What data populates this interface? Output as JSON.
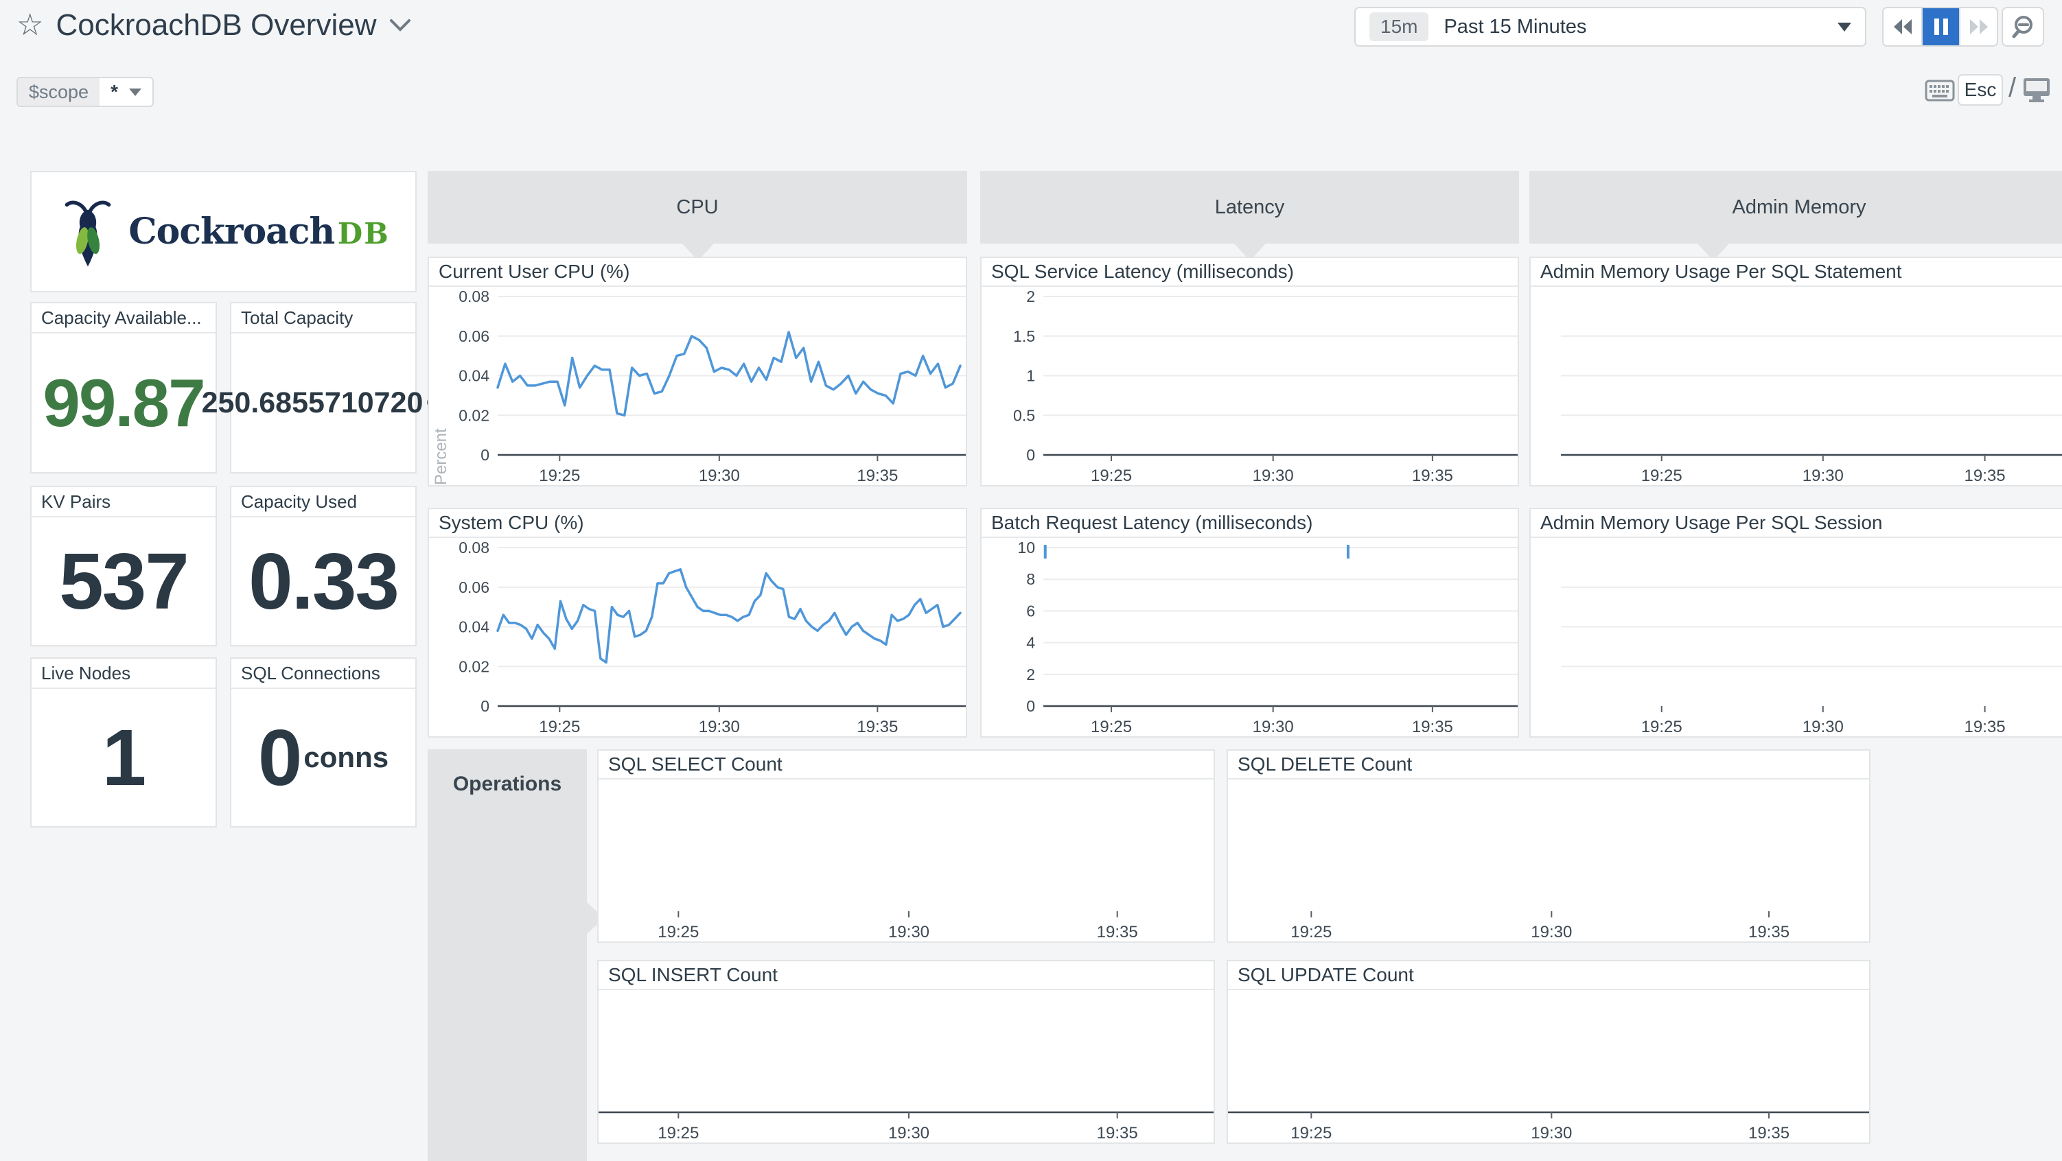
{
  "header": {
    "title": "CockroachDB Overview",
    "time": {
      "badge": "15m",
      "label": "Past 15 Minutes"
    },
    "esc_label": "Esc",
    "slash": "/"
  },
  "scope": {
    "label": "$scope",
    "value": "*"
  },
  "logo": {
    "brand": "Cockroach",
    "suffix": "DB"
  },
  "colors": {
    "accent_blue": "#2d72c8",
    "line_blue": "#4f97d9",
    "stat_green": "#3e7b44",
    "brand_navy": "#1c3150",
    "brand_green": "#4d9e2d",
    "group_gray": "#e2e3e4"
  },
  "groups": {
    "cpu": "CPU",
    "latency": "Latency",
    "admin_memory": "Admin Memory",
    "operations": "Operations"
  },
  "stats": [
    {
      "title": "Capacity Available...",
      "value": "99.87",
      "unit": ""
    },
    {
      "title": "Total Capacity",
      "value": "250.6855710720",
      "unit": "GB"
    },
    {
      "title": "KV Pairs",
      "value": "537",
      "unit": ""
    },
    {
      "title": "Capacity Used",
      "value": "0.33",
      "unit": ""
    },
    {
      "title": "Live Nodes",
      "value": "1",
      "unit": ""
    },
    {
      "title": "SQL Connections",
      "value": "0",
      "unit": "conns"
    }
  ],
  "charts": {
    "current_user_cpu": {
      "type": "line",
      "title": "Current User CPU (%)",
      "ylabel": "Percent",
      "vmax": 0.08,
      "gutter_left": 100,
      "axis": true,
      "line_color": "#4f97d9",
      "yticks": [
        {
          "v": 0,
          "label": "0"
        },
        {
          "v": 0.02,
          "label": "0.02"
        },
        {
          "v": 0.04,
          "label": "0.04"
        },
        {
          "v": 0.06,
          "label": "0.06"
        },
        {
          "v": 0.08,
          "label": "0.08"
        }
      ],
      "xticks": [
        {
          "pos": 0.134,
          "label": "19:25"
        },
        {
          "pos": 0.479,
          "label": "19:30"
        },
        {
          "pos": 0.821,
          "label": "19:35"
        }
      ],
      "values": [
        0.034,
        0.046,
        0.037,
        0.04,
        0.035,
        0.035,
        0.036,
        0.037,
        0.037,
        0.025,
        0.049,
        0.034,
        0.04,
        0.045,
        0.043,
        0.043,
        0.021,
        0.02,
        0.044,
        0.04,
        0.041,
        0.031,
        0.032,
        0.04,
        0.05,
        0.051,
        0.06,
        0.058,
        0.054,
        0.042,
        0.044,
        0.043,
        0.04,
        0.046,
        0.037,
        0.044,
        0.038,
        0.049,
        0.047,
        0.062,
        0.049,
        0.054,
        0.037,
        0.047,
        0.035,
        0.033,
        0.036,
        0.04,
        0.031,
        0.037,
        0.033,
        0.031,
        0.03,
        0.026,
        0.041,
        0.042,
        0.04,
        0.05,
        0.041,
        0.046,
        0.034,
        0.036,
        0.045
      ]
    },
    "system_cpu": {
      "type": "line",
      "title": "System CPU (%)",
      "vmax": 0.08,
      "gutter_left": 100,
      "axis": true,
      "line_color": "#4f97d9",
      "yticks": [
        {
          "v": 0,
          "label": "0"
        },
        {
          "v": 0.02,
          "label": "0.02"
        },
        {
          "v": 0.04,
          "label": "0.04"
        },
        {
          "v": 0.06,
          "label": "0.06"
        },
        {
          "v": 0.08,
          "label": "0.08"
        }
      ],
      "xticks": [
        {
          "pos": 0.134,
          "label": "19:25"
        },
        {
          "pos": 0.479,
          "label": "19:30"
        },
        {
          "pos": 0.821,
          "label": "19:35"
        }
      ],
      "values": [
        0.038,
        0.046,
        0.042,
        0.042,
        0.041,
        0.039,
        0.034,
        0.041,
        0.037,
        0.034,
        0.029,
        0.053,
        0.044,
        0.039,
        0.043,
        0.051,
        0.049,
        0.048,
        0.024,
        0.022,
        0.05,
        0.046,
        0.045,
        0.048,
        0.035,
        0.036,
        0.038,
        0.045,
        0.062,
        0.062,
        0.067,
        0.068,
        0.069,
        0.06,
        0.055,
        0.05,
        0.048,
        0.048,
        0.047,
        0.046,
        0.046,
        0.045,
        0.043,
        0.045,
        0.046,
        0.053,
        0.056,
        0.067,
        0.063,
        0.06,
        0.059,
        0.045,
        0.044,
        0.049,
        0.043,
        0.04,
        0.038,
        0.041,
        0.043,
        0.047,
        0.041,
        0.036,
        0.04,
        0.042,
        0.038,
        0.036,
        0.034,
        0.033,
        0.031,
        0.046,
        0.043,
        0.044,
        0.046,
        0.051,
        0.054,
        0.047,
        0.049,
        0.051,
        0.04,
        0.041,
        0.044,
        0.047
      ]
    },
    "sql_service_latency": {
      "type": "line",
      "title": "SQL Service Latency (milliseconds)",
      "vmax": 2,
      "gutter_left": 90,
      "axis": true,
      "line_color": "#4f97d9",
      "yticks": [
        {
          "v": 0,
          "label": "0"
        },
        {
          "v": 0.5,
          "label": "0.5"
        },
        {
          "v": 1,
          "label": "1"
        },
        {
          "v": 1.5,
          "label": "1.5"
        },
        {
          "v": 2,
          "label": "2"
        }
      ],
      "xticks": [
        {
          "pos": 0.145,
          "label": "19:25"
        },
        {
          "pos": 0.49,
          "label": "19:30"
        },
        {
          "pos": 0.83,
          "label": "19:35"
        }
      ],
      "values": []
    },
    "batch_request_latency": {
      "type": "line",
      "title": "Batch Request Latency (milliseconds)",
      "vmax": 10,
      "gutter_left": 90,
      "axis": true,
      "line_color": "#4f97d9",
      "yticks": [
        {
          "v": 0,
          "label": "0"
        },
        {
          "v": 2,
          "label": "2"
        },
        {
          "v": 4,
          "label": "4"
        },
        {
          "v": 6,
          "label": "6"
        },
        {
          "v": 8,
          "label": "8"
        },
        {
          "v": 10,
          "label": "10"
        }
      ],
      "xticks": [
        {
          "pos": 0.145,
          "label": "19:25"
        },
        {
          "pos": 0.49,
          "label": "19:30"
        },
        {
          "pos": 0.83,
          "label": "19:35"
        }
      ],
      "markers": [
        0.004,
        0.65
      ],
      "values": []
    },
    "admin_mem_statement": {
      "type": "line",
      "title": "Admin Memory Usage Per SQL Statement",
      "vmax": 4,
      "gutter_left": 44,
      "axis": true,
      "line_color": "#4f97d9",
      "yticks": [
        {
          "v": 1,
          "label": ""
        },
        {
          "v": 2,
          "label": ""
        },
        {
          "v": 3,
          "label": ""
        }
      ],
      "xticks": [
        {
          "pos": 0.201,
          "label": "19:25"
        },
        {
          "pos": 0.523,
          "label": "19:30"
        },
        {
          "pos": 0.846,
          "label": "19:35"
        }
      ],
      "values": []
    },
    "admin_mem_session": {
      "type": "line",
      "title": "Admin Memory Usage Per SQL Session",
      "vmax": 4,
      "gutter_left": 44,
      "axis": false,
      "line_color": "#4f97d9",
      "yticks": [
        {
          "v": 1,
          "label": ""
        },
        {
          "v": 2,
          "label": ""
        },
        {
          "v": 3,
          "label": ""
        }
      ],
      "xticks": [
        {
          "pos": 0.201,
          "label": "19:25"
        },
        {
          "pos": 0.523,
          "label": "19:30"
        },
        {
          "pos": 0.846,
          "label": "19:35"
        }
      ],
      "values": []
    },
    "sql_select_count": {
      "type": "line",
      "title": "SQL SELECT Count",
      "vmax": 1,
      "gutter_left": 0,
      "axis": false,
      "line_color": "#4f97d9",
      "yticks": [],
      "xticks": [
        {
          "pos": 0.131,
          "label": "19:25"
        },
        {
          "pos": 0.509,
          "label": "19:30"
        },
        {
          "pos": 0.851,
          "label": "19:35"
        }
      ],
      "values": []
    },
    "sql_delete_count": {
      "type": "line",
      "title": "SQL DELETE Count",
      "vmax": 1,
      "gutter_left": 0,
      "axis": false,
      "line_color": "#4f97d9",
      "yticks": [],
      "xticks": [
        {
          "pos": 0.131,
          "label": "19:25"
        },
        {
          "pos": 0.509,
          "label": "19:30"
        },
        {
          "pos": 0.851,
          "label": "19:35"
        }
      ],
      "values": []
    },
    "sql_insert_count": {
      "type": "line",
      "title": "SQL INSERT Count",
      "vmax": 1,
      "gutter_left": 0,
      "axis": true,
      "line_color": "#4f97d9",
      "yticks": [],
      "xticks": [
        {
          "pos": 0.131,
          "label": "19:25"
        },
        {
          "pos": 0.509,
          "label": "19:30"
        },
        {
          "pos": 0.851,
          "label": "19:35"
        }
      ],
      "values": []
    },
    "sql_update_count": {
      "type": "line",
      "title": "SQL UPDATE Count",
      "vmax": 1,
      "gutter_left": 0,
      "axis": true,
      "line_color": "#4f97d9",
      "yticks": [],
      "xticks": [
        {
          "pos": 0.131,
          "label": "19:25"
        },
        {
          "pos": 0.509,
          "label": "19:30"
        },
        {
          "pos": 0.851,
          "label": "19:35"
        }
      ],
      "values": []
    }
  }
}
